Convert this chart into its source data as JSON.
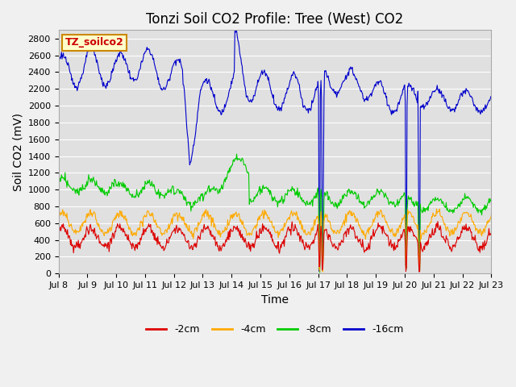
{
  "title": "Tonzi Soil CO2 Profile: Tree (West) CO2",
  "ylabel": "Soil CO2 (mV)",
  "xlabel": "Time",
  "legend_label": "TZ_soilco2",
  "ylim": [
    0,
    2900
  ],
  "yticks": [
    0,
    200,
    400,
    600,
    800,
    1000,
    1200,
    1400,
    1600,
    1800,
    2000,
    2200,
    2400,
    2600,
    2800
  ],
  "xtick_labels": [
    "Jul 8",
    "Jul 9",
    "Jul 10",
    "Jul 11",
    "Jul 12",
    "Jul 13",
    "Jul 14",
    "Jul 15",
    "Jul 16",
    "Jul 17",
    "Jul 18",
    "Jul 19",
    "Jul 20",
    "Jul 21",
    "Jul 22",
    "Jul 23"
  ],
  "colors": {
    "2cm": "#dd0000",
    "4cm": "#ffaa00",
    "8cm": "#00cc00",
    "16cm": "#0000cc"
  },
  "legend_entries": [
    "-2cm",
    "-4cm",
    "-8cm",
    "-16cm"
  ],
  "fig_bg_color": "#f0f0f0",
  "plot_bg_color": "#e0e0e0",
  "title_fontsize": 12,
  "axis_fontsize": 10,
  "tick_fontsize": 8,
  "legend_box_color": "#ffffcc",
  "legend_box_edge": "#cc8800",
  "grid_color": "#ffffff"
}
